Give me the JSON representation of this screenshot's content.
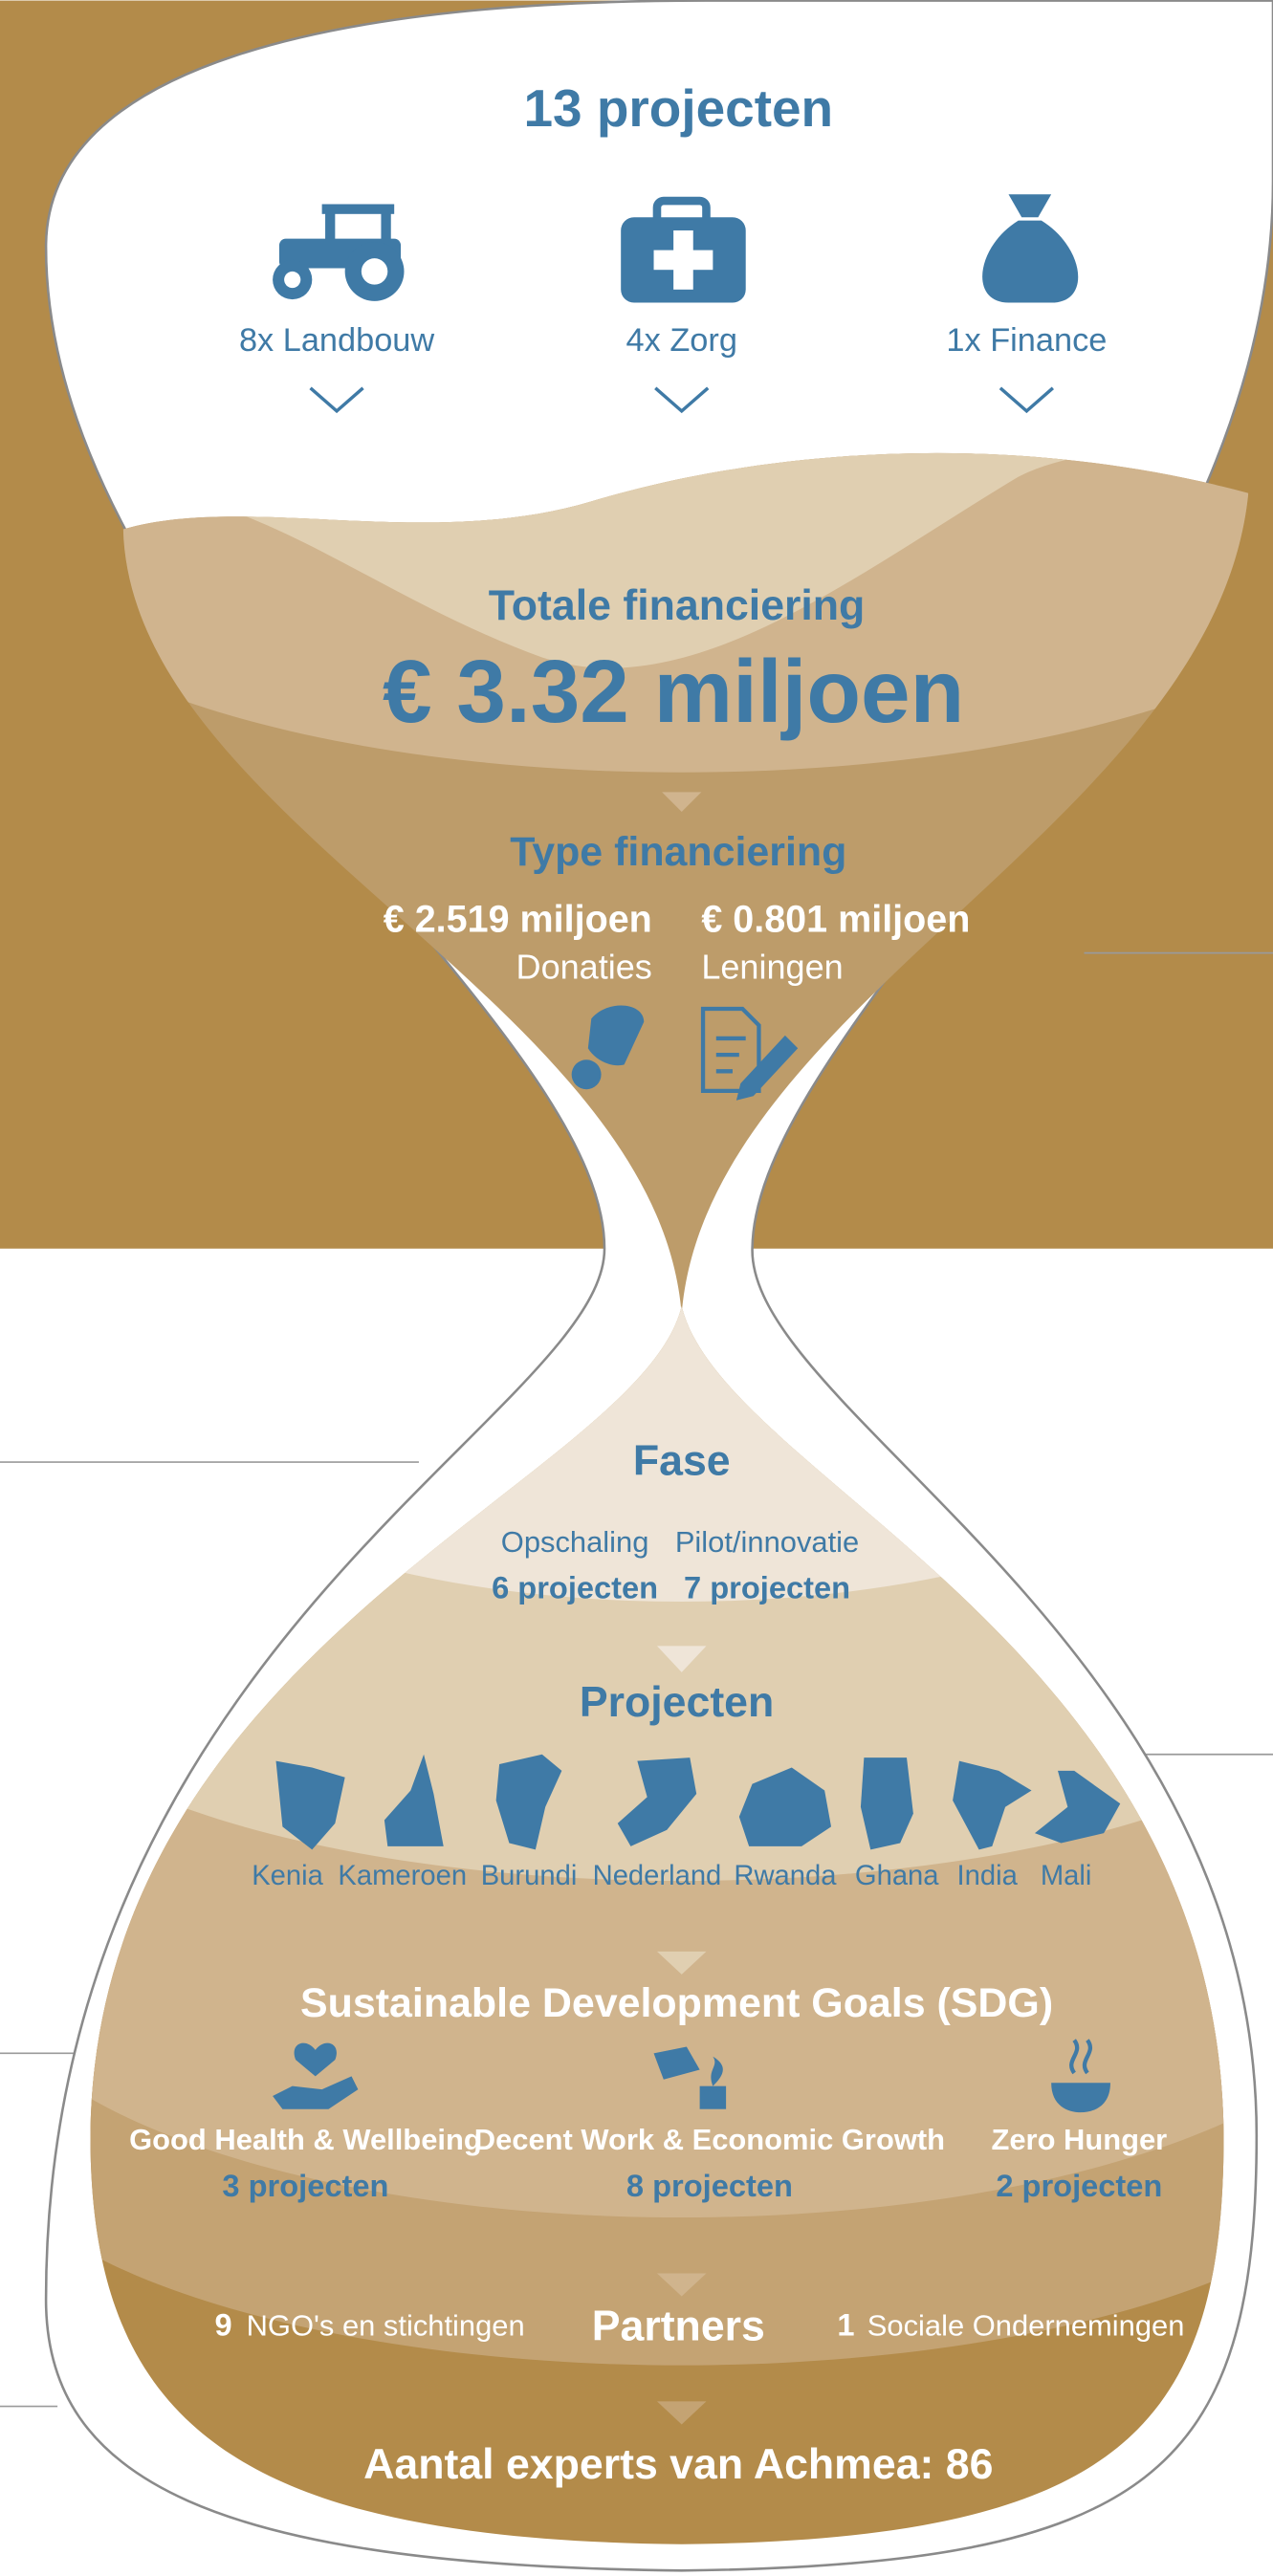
{
  "title": "13 projecten",
  "sectors": [
    {
      "label": "8x Landbouw"
    },
    {
      "label": "4x Zorg"
    },
    {
      "label": "1x Finance"
    }
  ],
  "total": {
    "heading": "Totale financiering",
    "amount": "€ 3.32 miljoen"
  },
  "financing": {
    "heading": "Type financiering",
    "types": [
      {
        "amount": "€ 2.519 miljoen",
        "label": "Donaties"
      },
      {
        "amount": "€ 0.801 miljoen",
        "label": "Leningen"
      }
    ]
  },
  "phase": {
    "heading": "Fase",
    "items": [
      {
        "label": "Opschaling",
        "count": "6 projecten"
      },
      {
        "label": "Pilot/innovatie",
        "count": "7 projecten"
      }
    ]
  },
  "countries": {
    "heading": "Projecten",
    "items": [
      "Kenia",
      "Kameroen",
      "Burundi",
      "Nederland",
      "Rwanda",
      "Ghana",
      "India",
      "Mali"
    ]
  },
  "sdg": {
    "heading": "Sustainable Development Goals (SDG)",
    "items": [
      {
        "label": "Good Health & Wellbeing",
        "count": "3 projecten"
      },
      {
        "label": "Decent Work & Economic Growth",
        "count": "8 projecten"
      },
      {
        "label": "Zero Hunger",
        "count": "2 projecten"
      }
    ]
  },
  "partners": {
    "heading": "Partners",
    "items": [
      {
        "count": "9",
        "label": "NGO's en stichtingen"
      },
      {
        "count": "1",
        "label": "Sociale Ondernemingen"
      }
    ]
  },
  "experts": "Aantal experts van Achmea: 86"
}
